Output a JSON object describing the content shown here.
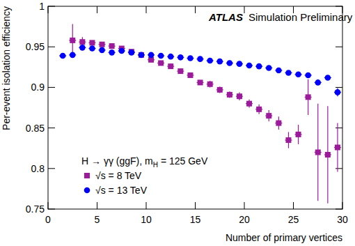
{
  "chart_data": {
    "type": "scatter",
    "x_label": "Number of primary vertices",
    "y_label": "Per-event isolation efficiency",
    "annotations": [
      "ATLAS",
      "Simulation Preliminary",
      "H → γγ (ggF),  m",
      "H",
      "= 125 GeV"
    ],
    "xlim": [
      0,
      30
    ],
    "ylim": [
      0.75,
      1
    ],
    "xticks": [
      0,
      5,
      10,
      15,
      20,
      25,
      30
    ],
    "yticks": [
      0.75,
      0.8,
      0.85,
      0.9,
      0.95,
      1
    ],
    "grid": false,
    "legend": "lower left",
    "series": [
      {
        "name": "√s = 8 TeV",
        "color": "#9b1b9b",
        "marker": "square",
        "x": [
          2.5,
          3.5,
          4.5,
          5.5,
          6.5,
          7.5,
          8.5,
          9.5,
          10.5,
          11.5,
          12.5,
          13.5,
          14.5,
          15.5,
          16.5,
          17.5,
          18.5,
          19.5,
          20.5,
          21.5,
          22.5,
          23.5,
          24.5,
          25.5,
          26.5,
          27.5,
          28.5,
          29.5
        ],
        "values": [
          0.958,
          0.956,
          0.955,
          0.953,
          0.951,
          0.948,
          0.944,
          0.94,
          0.934,
          0.93,
          0.926,
          0.92,
          0.915,
          0.906,
          0.904,
          0.897,
          0.891,
          0.889,
          0.88,
          0.873,
          0.865,
          0.856,
          0.835,
          0.842,
          0.888,
          0.82,
          0.817,
          0.826
        ],
        "errors": [
          0.02,
          0.006,
          0.003,
          0.003,
          0.003,
          0.003,
          0.003,
          0.003,
          0.003,
          0.003,
          0.003,
          0.003,
          0.003,
          0.003,
          0.004,
          0.004,
          0.004,
          0.005,
          0.005,
          0.006,
          0.007,
          0.008,
          0.01,
          0.012,
          0.022,
          0.06,
          0.06,
          0.03
        ]
      },
      {
        "name": "√s = 13 TeV",
        "color": "#0000ff",
        "marker": "circle",
        "x": [
          1.5,
          2.5,
          3.5,
          4.5,
          5.5,
          6.5,
          7.5,
          8.5,
          9.5,
          10.5,
          11.5,
          12.5,
          13.5,
          14.5,
          15.5,
          16.5,
          17.5,
          18.5,
          19.5,
          20.5,
          21.5,
          22.5,
          23.5,
          24.5,
          25.5,
          26.5,
          27.5,
          28.5,
          29.5
        ],
        "values": [
          0.939,
          0.94,
          0.949,
          0.948,
          0.946,
          0.943,
          0.945,
          0.943,
          0.94,
          0.94,
          0.939,
          0.938,
          0.937,
          0.936,
          0.935,
          0.933,
          0.932,
          0.93,
          0.929,
          0.927,
          0.926,
          0.924,
          0.921,
          0.918,
          0.916,
          0.915,
          0.906,
          0.912,
          0.894
        ],
        "errors": [
          0.003,
          0.002,
          0.002,
          0.002,
          0.002,
          0.002,
          0.002,
          0.002,
          0.002,
          0.002,
          0.002,
          0.002,
          0.002,
          0.002,
          0.002,
          0.002,
          0.002,
          0.002,
          0.002,
          0.002,
          0.002,
          0.002,
          0.002,
          0.002,
          0.002,
          0.003,
          0.003,
          0.003,
          0.005
        ]
      }
    ]
  }
}
